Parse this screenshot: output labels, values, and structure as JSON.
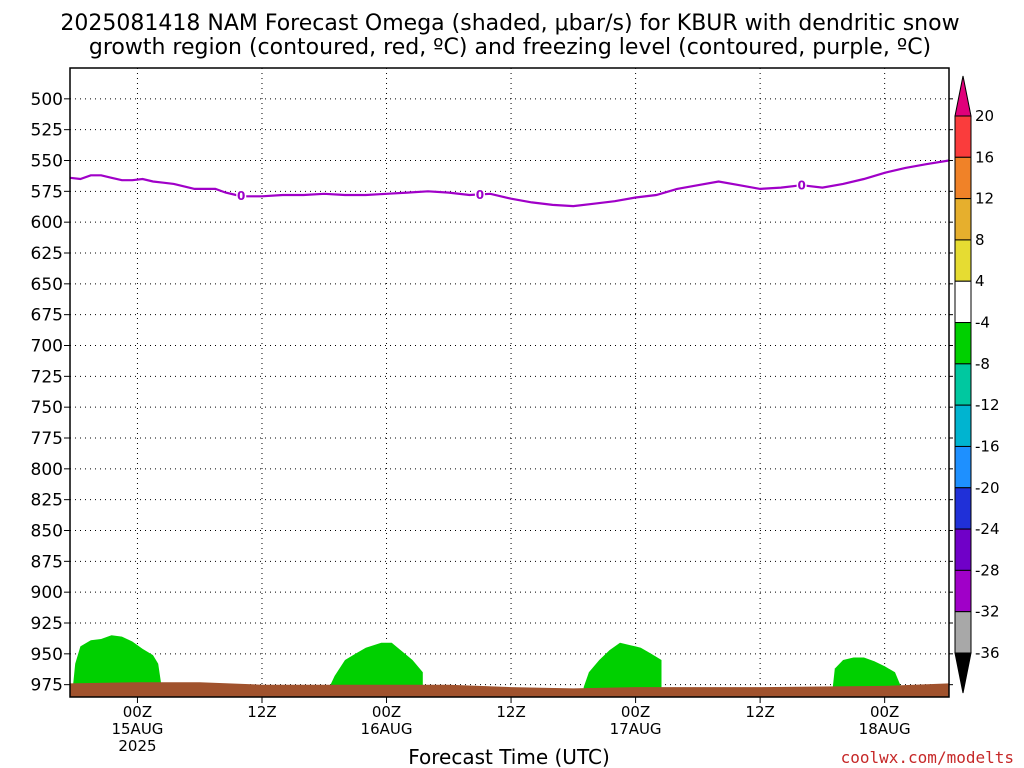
{
  "chart_data": {
    "type": "time-height cross section",
    "title_line1": "2025081418 NAM Forecast Omega (shaded, μbar/s) for KBUR with dendritic snow",
    "title_line2": "growth region (contoured, red, ºC) and freezing level (contoured, purple, ºC)",
    "xlabel": "Forecast Time (UTC)",
    "credit": "coolwx.com/modelts",
    "y_axis": {
      "unit": "hPa",
      "ticks": [
        500,
        525,
        550,
        575,
        600,
        625,
        650,
        675,
        700,
        725,
        750,
        775,
        800,
        825,
        850,
        875,
        900,
        925,
        950,
        975
      ],
      "range": [
        475,
        985
      ],
      "grid": "dotted"
    },
    "x_axis": {
      "range_hours": [
        -6.5,
        78.2
      ],
      "ticks": [
        {
          "hour": 0,
          "label": "00Z",
          "date": "15AUG",
          "year": "2025"
        },
        {
          "hour": 12,
          "label": "12Z",
          "date": "",
          "year": ""
        },
        {
          "hour": 24,
          "label": "00Z",
          "date": "16AUG",
          "year": ""
        },
        {
          "hour": 36,
          "label": "12Z",
          "date": "",
          "year": ""
        },
        {
          "hour": 48,
          "label": "00Z",
          "date": "17AUG",
          "year": ""
        },
        {
          "hour": 60,
          "label": "12Z",
          "date": "",
          "year": ""
        },
        {
          "hour": 72,
          "label": "00Z",
          "date": "18AUG",
          "year": ""
        }
      ]
    },
    "freezing_level": {
      "label": "0",
      "color": "#a000c8",
      "label_hours": [
        10,
        33,
        64
      ],
      "points": [
        [
          -6.5,
          564
        ],
        [
          -5.5,
          565
        ],
        [
          -4.5,
          562
        ],
        [
          -3.5,
          562
        ],
        [
          -2.5,
          564
        ],
        [
          -1.5,
          566
        ],
        [
          -0.5,
          566
        ],
        [
          0.5,
          565
        ],
        [
          1.5,
          567
        ],
        [
          2.5,
          568
        ],
        [
          3.5,
          569
        ],
        [
          4.5,
          571
        ],
        [
          5.5,
          573
        ],
        [
          6.5,
          573
        ],
        [
          7.5,
          573
        ],
        [
          8.5,
          576
        ],
        [
          9.5,
          578
        ],
        [
          10.5,
          579
        ],
        [
          12,
          579
        ],
        [
          14,
          578
        ],
        [
          16,
          578
        ],
        [
          18,
          577
        ],
        [
          20,
          578
        ],
        [
          22,
          578
        ],
        [
          24,
          577
        ],
        [
          26,
          576
        ],
        [
          28,
          575
        ],
        [
          30,
          576
        ],
        [
          32,
          578
        ],
        [
          34,
          577
        ],
        [
          36,
          581
        ],
        [
          38,
          584
        ],
        [
          40,
          586
        ],
        [
          42,
          587
        ],
        [
          44,
          585
        ],
        [
          46,
          583
        ],
        [
          48,
          580
        ],
        [
          50,
          578
        ],
        [
          52,
          573
        ],
        [
          54,
          570
        ],
        [
          56,
          567
        ],
        [
          58,
          570
        ],
        [
          60,
          573
        ],
        [
          62,
          572
        ],
        [
          64,
          570
        ],
        [
          66,
          572
        ],
        [
          68,
          569
        ],
        [
          70,
          565
        ],
        [
          72,
          560
        ],
        [
          74,
          556
        ],
        [
          76,
          553
        ],
        [
          78.2,
          550
        ]
      ]
    },
    "omega_regions": [
      {
        "value_bin": "-8 to -4",
        "color": "#00d000",
        "hours": [
          -6.2,
          2.3
        ],
        "top": [
          [
            -6.2,
            975
          ],
          [
            -6.0,
            958
          ],
          [
            -5.5,
            944
          ],
          [
            -4.5,
            939
          ],
          [
            -3.5,
            938
          ],
          [
            -2.5,
            935
          ],
          [
            -1.5,
            936
          ],
          [
            -0.5,
            940
          ],
          [
            0.5,
            946
          ],
          [
            1.5,
            951
          ],
          [
            2.0,
            958
          ],
          [
            2.3,
            975
          ]
        ]
      },
      {
        "value_bin": "-8 to -4",
        "color": "#00d000",
        "hours": [
          18.5,
          27.5
        ],
        "top": [
          [
            18.5,
            977
          ],
          [
            19.0,
            968
          ],
          [
            20.0,
            955
          ],
          [
            21.0,
            950
          ],
          [
            22.0,
            945
          ],
          [
            23.5,
            941
          ],
          [
            24.5,
            941
          ],
          [
            25.5,
            948
          ],
          [
            26.5,
            955
          ],
          [
            27.5,
            965
          ],
          [
            27.5,
            977
          ]
        ]
      },
      {
        "value_bin": "-8 to -4",
        "color": "#00d000",
        "hours": [
          43.0,
          50.5
        ],
        "top": [
          [
            43.0,
            977
          ],
          [
            43.5,
            965
          ],
          [
            44.5,
            955
          ],
          [
            45.5,
            947
          ],
          [
            46.5,
            941
          ],
          [
            47.5,
            943
          ],
          [
            48.5,
            945
          ],
          [
            49.5,
            950
          ],
          [
            50.5,
            955
          ],
          [
            50.5,
            977
          ]
        ]
      },
      {
        "value_bin": "-8 to -4",
        "color": "#00d000",
        "hours": [
          67.0,
          73.5
        ],
        "top": [
          [
            67.0,
            977
          ],
          [
            67.2,
            962
          ],
          [
            68.0,
            955
          ],
          [
            69.0,
            953
          ],
          [
            70.0,
            953
          ],
          [
            71.0,
            956
          ],
          [
            72.0,
            960
          ],
          [
            73.0,
            965
          ],
          [
            73.5,
            975
          ]
        ]
      }
    ],
    "surface": {
      "color": "#a0522d",
      "top_pressure": [
        [
          -6.5,
          974
        ],
        [
          0,
          973
        ],
        [
          6,
          973
        ],
        [
          12,
          975
        ],
        [
          24,
          975
        ],
        [
          30,
          975
        ],
        [
          36,
          977
        ],
        [
          42,
          978
        ],
        [
          48,
          977
        ],
        [
          60,
          977
        ],
        [
          72,
          976
        ],
        [
          78.2,
          974
        ]
      ]
    },
    "colorbar": {
      "bins": [
        {
          "color": "#000000",
          "lower": null,
          "upper": -36
        },
        {
          "color": "#a8a8a8",
          "lower": -36,
          "upper": -32
        },
        {
          "color": "#a000c8",
          "lower": -32,
          "upper": -28
        },
        {
          "color": "#7000c8",
          "lower": -28,
          "upper": -24
        },
        {
          "color": "#2030d8",
          "lower": -24,
          "upper": -20
        },
        {
          "color": "#1e90ff",
          "lower": -20,
          "upper": -16
        },
        {
          "color": "#00b4d0",
          "lower": -16,
          "upper": -12
        },
        {
          "color": "#00c8a0",
          "lower": -12,
          "upper": -8
        },
        {
          "color": "#00d000",
          "lower": -8,
          "upper": -4
        },
        {
          "color": "#ffffff",
          "lower": -4,
          "upper": 4
        },
        {
          "color": "#e6dc32",
          "lower": 4,
          "upper": 8
        },
        {
          "color": "#e6af2d",
          "lower": 8,
          "upper": 12
        },
        {
          "color": "#f08228",
          "lower": 12,
          "upper": 16
        },
        {
          "color": "#fa3c3c",
          "lower": 16,
          "upper": 20
        },
        {
          "color": "#e0007a",
          "lower": 20,
          "upper": null
        }
      ],
      "labels": [
        "-36",
        "-32",
        "-28",
        "-24",
        "-20",
        "-16",
        "-12",
        "-8",
        "-4",
        "4",
        "8",
        "12",
        "16",
        "20"
      ]
    }
  }
}
